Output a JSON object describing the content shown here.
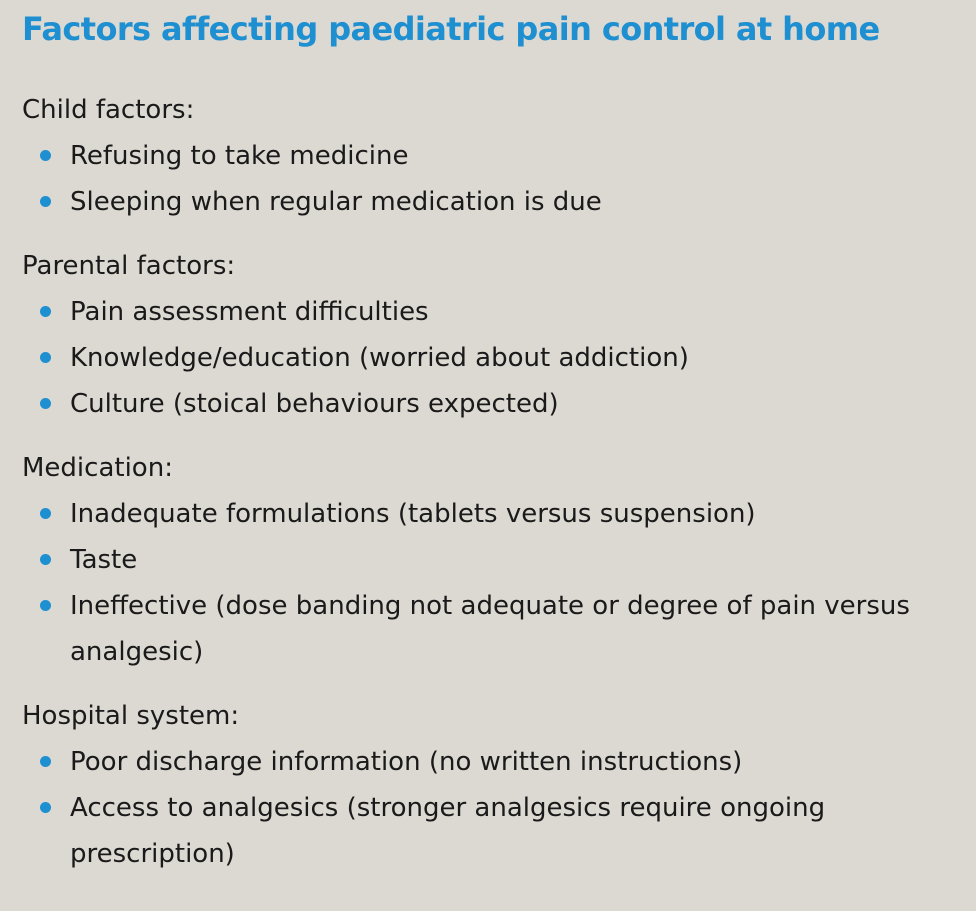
{
  "title": "Factors affecting paediatric pain control at home",
  "accent_color": "#1e8fd0",
  "background_color": "#dcd8d2",
  "sections": [
    {
      "heading": "Child factors:",
      "items": [
        "Refusing to take medicine",
        "Sleeping when regular medication is due"
      ]
    },
    {
      "heading": "Parental factors:",
      "items": [
        "Pain assessment difficulties",
        "Knowledge/education (worried about addiction)",
        "Culture (stoical behaviours expected)"
      ]
    },
    {
      "heading": "Medication:",
      "items": [
        "Inadequate formulations (tablets versus suspension)",
        "Taste",
        "Ineffective (dose banding not adequate or degree of pain versus analgesic)"
      ]
    },
    {
      "heading": "Hospital system:",
      "items": [
        "Poor discharge information (no written instructions)",
        "Access to analgesics (stronger analgesics require ongoing prescription)"
      ]
    }
  ]
}
